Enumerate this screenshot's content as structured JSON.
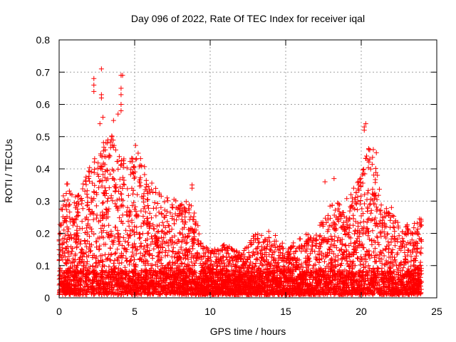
{
  "chart_data": {
    "type": "scatter",
    "title": "Day 096 of 2022, Rate Of TEC Index for receiver iqal",
    "xlabel": "GPS time / hours",
    "ylabel": "ROTI / TECUs",
    "xlim": [
      0,
      25
    ],
    "ylim": [
      0,
      0.8
    ],
    "xticks": [
      "0",
      "5",
      "10",
      "15",
      "20",
      "25"
    ],
    "yticks": [
      "0",
      "0.1",
      "0.2",
      "0.3",
      "0.4",
      "0.5",
      "0.6",
      "0.7",
      "0.8"
    ],
    "grid": true,
    "marker": "+",
    "color": "#ff0000",
    "envelope": {
      "description": "approximate upper envelope of ROTI values vs GPS time",
      "x": [
        0,
        0.5,
        1,
        1.5,
        2,
        2.5,
        3,
        3.5,
        4,
        4.5,
        5,
        5.5,
        6,
        6.5,
        7,
        7.5,
        8,
        8.5,
        9,
        9.5,
        10,
        11,
        12,
        13,
        14,
        15,
        16,
        17,
        18,
        19,
        19.5,
        20,
        20.5,
        21,
        21.5,
        22,
        23,
        24
      ],
      "y": [
        0.25,
        0.36,
        0.3,
        0.35,
        0.4,
        0.45,
        0.48,
        0.5,
        0.45,
        0.4,
        0.47,
        0.42,
        0.36,
        0.33,
        0.3,
        0.3,
        0.28,
        0.3,
        0.25,
        0.16,
        0.14,
        0.16,
        0.13,
        0.19,
        0.2,
        0.15,
        0.18,
        0.2,
        0.28,
        0.3,
        0.32,
        0.38,
        0.46,
        0.4,
        0.28,
        0.25,
        0.22,
        0.24
      ]
    },
    "outliers": [
      {
        "x": 2.3,
        "y": 0.68
      },
      {
        "x": 2.3,
        "y": 0.66
      },
      {
        "x": 2.3,
        "y": 0.64
      },
      {
        "x": 2.8,
        "y": 0.71
      },
      {
        "x": 2.8,
        "y": 0.63
      },
      {
        "x": 2.8,
        "y": 0.62
      },
      {
        "x": 4.1,
        "y": 0.69
      },
      {
        "x": 4.2,
        "y": 0.69
      },
      {
        "x": 4.1,
        "y": 0.65
      },
      {
        "x": 4.1,
        "y": 0.63
      },
      {
        "x": 4.1,
        "y": 0.6
      },
      {
        "x": 4.1,
        "y": 0.58
      },
      {
        "x": 2.9,
        "y": 0.56
      },
      {
        "x": 3.6,
        "y": 0.55
      },
      {
        "x": 3.9,
        "y": 0.57
      },
      {
        "x": 2.7,
        "y": 0.54
      },
      {
        "x": 3.5,
        "y": 0.5
      },
      {
        "x": 3.2,
        "y": 0.48
      },
      {
        "x": 20.2,
        "y": 0.53
      },
      {
        "x": 20.3,
        "y": 0.54
      },
      {
        "x": 20.2,
        "y": 0.52
      },
      {
        "x": 20.5,
        "y": 0.46
      },
      {
        "x": 20.8,
        "y": 0.46
      },
      {
        "x": 21.0,
        "y": 0.45
      },
      {
        "x": 18.2,
        "y": 0.37
      },
      {
        "x": 17.6,
        "y": 0.36
      },
      {
        "x": 19.5,
        "y": 0.34
      },
      {
        "x": 8.8,
        "y": 0.35
      },
      {
        "x": 8.8,
        "y": 0.34
      },
      {
        "x": 22.0,
        "y": 0.28
      }
    ]
  }
}
